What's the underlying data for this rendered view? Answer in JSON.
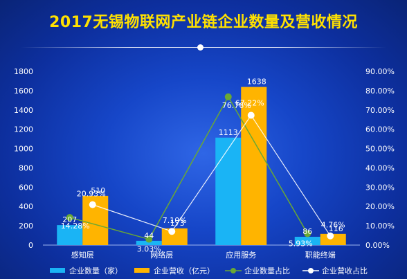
{
  "title": "2017无锡物联网产业链企业数量及营收情况",
  "colors": {
    "count_bar": "#1ab4f5",
    "revenue_bar": "#ffb400",
    "count_ratio": "#6aa834",
    "revenue_ratio": "#ffffff"
  },
  "chart_data": {
    "type": "bar",
    "categories": [
      "感知层",
      "网络层",
      "应用服务",
      "职能终端"
    ],
    "series": [
      {
        "name": "企业数量（家）",
        "type": "bar",
        "axis": "left",
        "values": [
          207,
          44,
          1113,
          86
        ]
      },
      {
        "name": "企业营收（亿元）",
        "type": "bar",
        "axis": "left",
        "values": [
          510,
          173,
          1638,
          116
        ]
      },
      {
        "name": "企业数量占比",
        "type": "line",
        "axis": "right",
        "values": [
          14.28,
          3.03,
          76.76,
          5.93
        ]
      },
      {
        "name": "企业营收占比",
        "type": "line",
        "axis": "right",
        "values": [
          20.93,
          7.1,
          67.22,
          4.76
        ]
      }
    ],
    "point_labels": {
      "count_bars": [
        "207",
        "44",
        "1113",
        "86"
      ],
      "revenue_bars": [
        "510",
        "173",
        "1638",
        "116"
      ],
      "count_ratio": [
        "14.28%",
        "3.03%",
        "76.76%",
        "5.93%"
      ],
      "revenue_ratio": [
        "20.93%",
        "7.10%",
        "67.22%",
        "4.76%"
      ]
    },
    "y_left": {
      "min": 0,
      "max": 1800,
      "ticks": [
        "0",
        "200",
        "400",
        "600",
        "800",
        "1000",
        "1200",
        "1400",
        "1600",
        "1800"
      ]
    },
    "y_right": {
      "min": 0,
      "max": 90,
      "ticks": [
        "0.00%",
        "10.00%",
        "20.00%",
        "30.00%",
        "40.00%",
        "50.00%",
        "60.00%",
        "70.00%",
        "80.00%",
        "90.00%"
      ]
    },
    "legend": [
      "企业数量（家）",
      "企业营收（亿元）",
      "企业数量占比",
      "企业营收占比"
    ],
    "legend_position": "bottom",
    "grid": false
  }
}
